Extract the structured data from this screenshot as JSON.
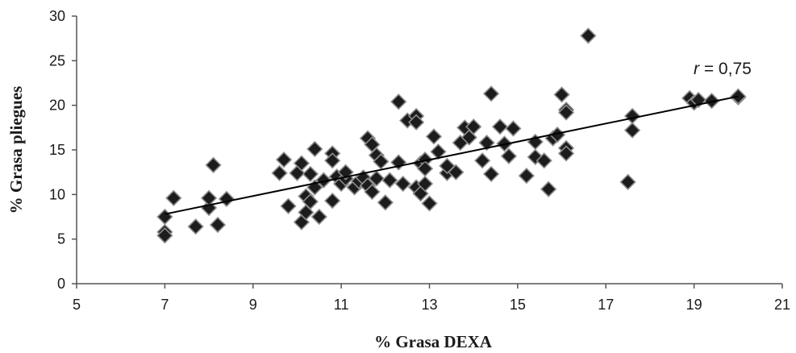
{
  "chart_data": {
    "type": "scatter",
    "xlabel": "% Grasa DEXA",
    "ylabel": "% Grasa pliegues",
    "xlim": [
      5,
      21
    ],
    "ylim": [
      0,
      30
    ],
    "x_ticks": [
      "5",
      "7",
      "9",
      "11",
      "13",
      "15",
      "17",
      "19",
      "21"
    ],
    "y_ticks": [
      "0",
      "5",
      "10",
      "15",
      "20",
      "25",
      "30"
    ],
    "grid": false,
    "legend": "none",
    "annotation": {
      "italic": "r",
      "text": " = 0,75"
    },
    "trendline": {
      "x": [
        7,
        20
      ],
      "y": [
        7.8,
        21.0
      ]
    },
    "marker_color": "#1c1c1c",
    "points": [
      {
        "x": 7.0,
        "y": 5.8
      },
      {
        "x": 7.0,
        "y": 5.4
      },
      {
        "x": 7.0,
        "y": 7.5
      },
      {
        "x": 7.2,
        "y": 9.6
      },
      {
        "x": 7.7,
        "y": 6.4
      },
      {
        "x": 8.0,
        "y": 8.5
      },
      {
        "x": 8.0,
        "y": 9.6
      },
      {
        "x": 8.1,
        "y": 13.3
      },
      {
        "x": 8.2,
        "y": 6.6
      },
      {
        "x": 8.4,
        "y": 9.5
      },
      {
        "x": 9.6,
        "y": 12.4
      },
      {
        "x": 9.7,
        "y": 13.9
      },
      {
        "x": 9.8,
        "y": 8.7
      },
      {
        "x": 10.0,
        "y": 12.4
      },
      {
        "x": 10.1,
        "y": 13.5
      },
      {
        "x": 10.1,
        "y": 6.9
      },
      {
        "x": 10.2,
        "y": 8.0
      },
      {
        "x": 10.2,
        "y": 9.8
      },
      {
        "x": 10.3,
        "y": 9.2
      },
      {
        "x": 10.3,
        "y": 12.3
      },
      {
        "x": 10.4,
        "y": 15.1
      },
      {
        "x": 10.4,
        "y": 10.8
      },
      {
        "x": 10.5,
        "y": 7.5
      },
      {
        "x": 10.6,
        "y": 11.6
      },
      {
        "x": 10.8,
        "y": 14.6
      },
      {
        "x": 10.8,
        "y": 13.8
      },
      {
        "x": 10.8,
        "y": 9.3
      },
      {
        "x": 10.9,
        "y": 12.0
      },
      {
        "x": 11.0,
        "y": 11.2
      },
      {
        "x": 11.1,
        "y": 11.8
      },
      {
        "x": 11.1,
        "y": 12.5
      },
      {
        "x": 11.3,
        "y": 10.8
      },
      {
        "x": 11.4,
        "y": 11.5
      },
      {
        "x": 11.5,
        "y": 11.9
      },
      {
        "x": 11.6,
        "y": 16.3
      },
      {
        "x": 11.6,
        "y": 11.0
      },
      {
        "x": 11.7,
        "y": 15.6
      },
      {
        "x": 11.7,
        "y": 10.3
      },
      {
        "x": 11.8,
        "y": 14.4
      },
      {
        "x": 11.8,
        "y": 11.8
      },
      {
        "x": 11.9,
        "y": 13.7
      },
      {
        "x": 12.0,
        "y": 9.1
      },
      {
        "x": 12.1,
        "y": 11.6
      },
      {
        "x": 12.3,
        "y": 20.4
      },
      {
        "x": 12.3,
        "y": 13.6
      },
      {
        "x": 12.4,
        "y": 11.2
      },
      {
        "x": 12.5,
        "y": 18.3
      },
      {
        "x": 12.7,
        "y": 18.8
      },
      {
        "x": 12.7,
        "y": 18.1
      },
      {
        "x": 12.7,
        "y": 10.8
      },
      {
        "x": 12.8,
        "y": 13.5
      },
      {
        "x": 12.8,
        "y": 10.1
      },
      {
        "x": 12.9,
        "y": 13.9
      },
      {
        "x": 12.9,
        "y": 12.9
      },
      {
        "x": 12.9,
        "y": 11.2
      },
      {
        "x": 13.0,
        "y": 9.0
      },
      {
        "x": 13.1,
        "y": 16.5
      },
      {
        "x": 13.2,
        "y": 14.8
      },
      {
        "x": 13.4,
        "y": 12.4
      },
      {
        "x": 13.4,
        "y": 13.2
      },
      {
        "x": 13.6,
        "y": 12.5
      },
      {
        "x": 13.7,
        "y": 15.8
      },
      {
        "x": 13.8,
        "y": 17.5
      },
      {
        "x": 13.9,
        "y": 16.4
      },
      {
        "x": 14.0,
        "y": 17.6
      },
      {
        "x": 14.2,
        "y": 13.8
      },
      {
        "x": 14.3,
        "y": 15.8
      },
      {
        "x": 14.4,
        "y": 21.3
      },
      {
        "x": 14.4,
        "y": 12.3
      },
      {
        "x": 14.6,
        "y": 17.6
      },
      {
        "x": 14.7,
        "y": 15.7
      },
      {
        "x": 14.8,
        "y": 14.3
      },
      {
        "x": 14.9,
        "y": 17.4
      },
      {
        "x": 15.2,
        "y": 12.1
      },
      {
        "x": 15.4,
        "y": 15.9
      },
      {
        "x": 15.4,
        "y": 14.2
      },
      {
        "x": 15.6,
        "y": 13.8
      },
      {
        "x": 15.7,
        "y": 10.6
      },
      {
        "x": 15.8,
        "y": 16.3
      },
      {
        "x": 15.9,
        "y": 16.7
      },
      {
        "x": 16.0,
        "y": 21.2
      },
      {
        "x": 16.1,
        "y": 19.5
      },
      {
        "x": 16.1,
        "y": 19.2
      },
      {
        "x": 16.1,
        "y": 15.2
      },
      {
        "x": 16.1,
        "y": 14.6
      },
      {
        "x": 16.6,
        "y": 27.8
      },
      {
        "x": 17.5,
        "y": 11.4
      },
      {
        "x": 17.6,
        "y": 18.8
      },
      {
        "x": 17.6,
        "y": 17.2
      },
      {
        "x": 18.9,
        "y": 20.8
      },
      {
        "x": 19.0,
        "y": 20.3
      },
      {
        "x": 19.1,
        "y": 20.6
      },
      {
        "x": 19.4,
        "y": 20.5
      },
      {
        "x": 20.0,
        "y": 20.9
      },
      {
        "x": 20.0,
        "y": 21.0
      }
    ]
  }
}
